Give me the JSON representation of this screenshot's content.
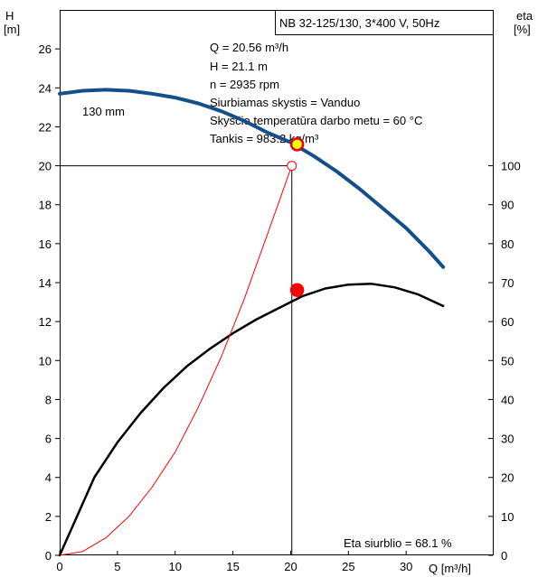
{
  "chart_data": {
    "type": "line",
    "title": "NB 32-125/130, 3*400 V, 50Hz",
    "left_axis": {
      "label_line1": "H",
      "label_line2": "[m]",
      "range": [
        0,
        28
      ],
      "ticks": [
        0,
        2,
        4,
        6,
        8,
        10,
        12,
        14,
        16,
        18,
        20,
        22,
        24,
        26
      ]
    },
    "right_axis": {
      "label_line1": "eta",
      "label_line2": "[%]",
      "range": [
        0,
        140
      ],
      "ticks": [
        0,
        10,
        20,
        30,
        40,
        50,
        60,
        70,
        80,
        90,
        100
      ]
    },
    "x_axis": {
      "label": "Q [m³/h]",
      "range": [
        0,
        37.5
      ],
      "ticks": [
        0,
        5,
        10,
        15,
        20,
        25,
        30
      ]
    },
    "info_lines": [
      "Q = 20.56 m³/h",
      "H = 21.1 m",
      "n = 2935 rpm",
      "Siurbiamas skystis = Vanduo",
      "Skysčio temperatūra darbo metu = 60 °C",
      "Tankis = 983.2 kg/m³"
    ],
    "impeller_label": "130 mm",
    "efficiency_text": "Eta siurblio = 68.1 %",
    "series": [
      {
        "axis": "left",
        "color": "#134f8a",
        "x": [
          0,
          2,
          4,
          6,
          8,
          10,
          12,
          14,
          16,
          18,
          20,
          22,
          24,
          26,
          28,
          30,
          32,
          33.2
        ],
        "y": [
          23.7,
          23.85,
          23.9,
          23.85,
          23.7,
          23.5,
          23.2,
          22.8,
          22.3,
          21.7,
          21.2,
          20.5,
          19.7,
          18.8,
          17.8,
          16.8,
          15.6,
          14.8
        ]
      },
      {
        "axis": "right",
        "color": "#000000",
        "x": [
          0,
          3,
          5,
          7,
          9,
          11,
          13,
          15,
          17,
          19,
          21,
          23,
          25,
          27,
          29,
          31,
          33.2
        ],
        "y": [
          0,
          20,
          29,
          36.5,
          43,
          48.5,
          53,
          57,
          60.5,
          63.5,
          66.5,
          68.5,
          69.5,
          69.7,
          68.8,
          67,
          64
        ]
      },
      {
        "axis": "left",
        "color": "#ff0000",
        "x": [
          0,
          2,
          4,
          6,
          8,
          10,
          12,
          14,
          16,
          18,
          20.1
        ],
        "y": [
          0,
          0.2,
          0.9,
          2,
          3.5,
          5.3,
          7.6,
          10.2,
          13.2,
          16.5,
          20
        ]
      }
    ],
    "operating_points": [
      {
        "x": 20.56,
        "y": 21.1,
        "axis": "left",
        "fill": "#ffff00",
        "stroke": "#e8000b"
      },
      {
        "x": 20.56,
        "y": 68.1,
        "axis": "right",
        "fill": "#ff0000",
        "stroke": "#ff0000"
      }
    ],
    "system_point": {
      "x": 20.1,
      "y": 20
    },
    "grid": false
  }
}
